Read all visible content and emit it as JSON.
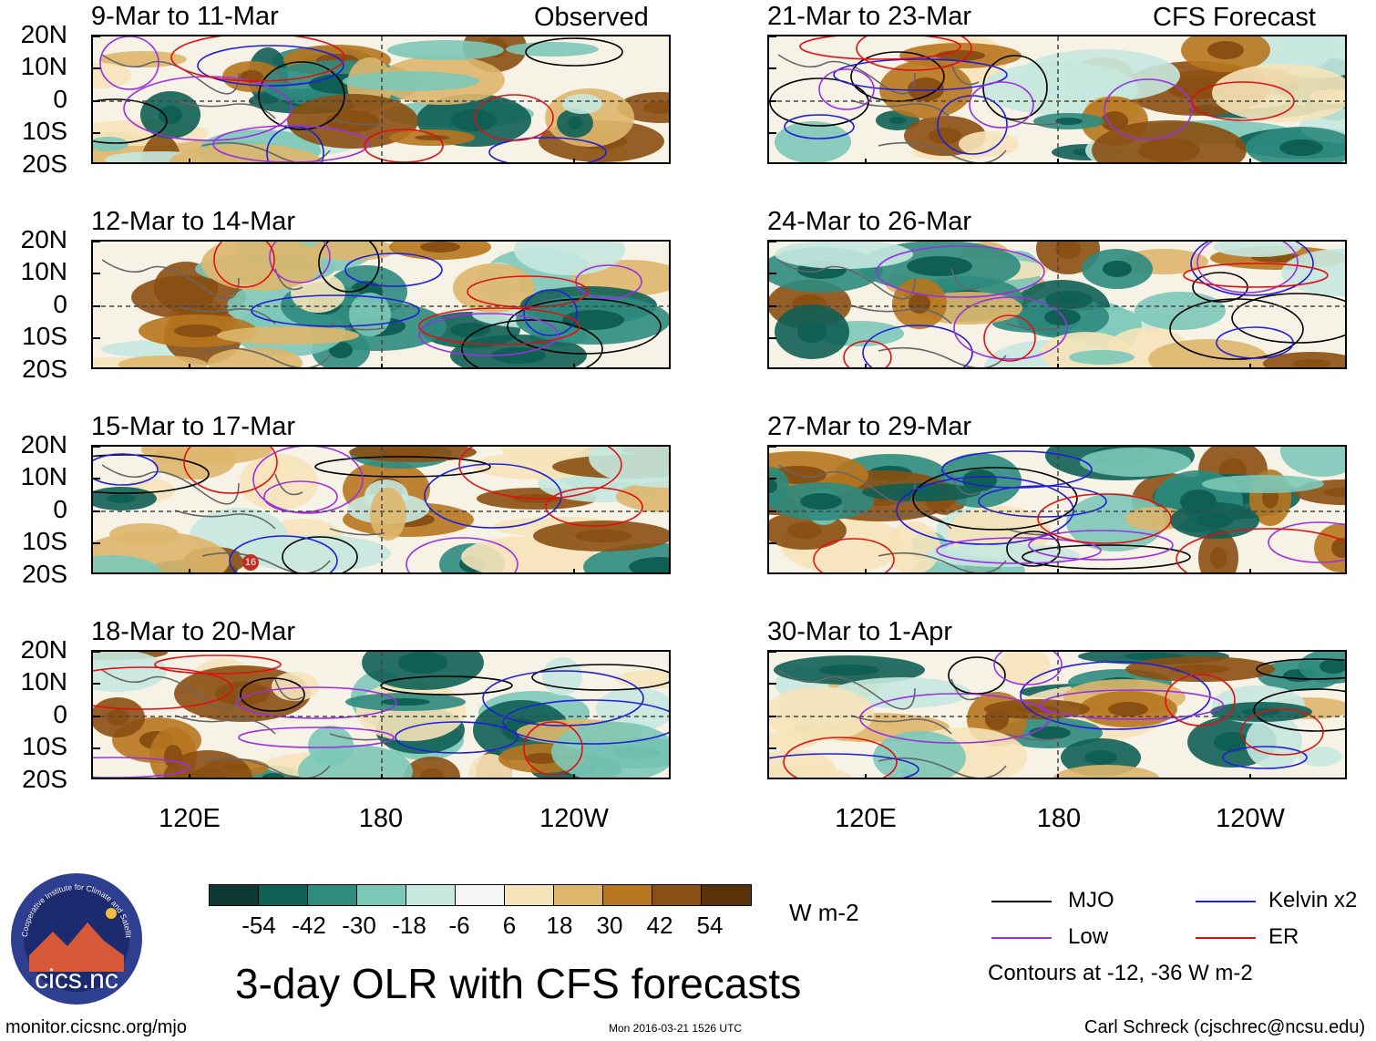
{
  "title": "3-day OLR with CFS forecasts",
  "units": "W m-2",
  "observed_label": "Observed",
  "forecast_label": "CFS Forecast",
  "lat_labels": [
    "20N",
    "10N",
    "0",
    "10S",
    "20S"
  ],
  "lon_labels": [
    "120E",
    "180",
    "120W"
  ],
  "panels": [
    {
      "title": "9-Mar to 11-Mar"
    },
    {
      "title": "12-Mar to 14-Mar"
    },
    {
      "title": "15-Mar to 17-Mar",
      "storm_marker": "16"
    },
    {
      "title": "18-Mar to 20-Mar"
    },
    {
      "title": "21-Mar to 23-Mar"
    },
    {
      "title": "24-Mar to 26-Mar"
    },
    {
      "title": "27-Mar to 29-Mar"
    },
    {
      "title": "30-Mar to 1-Apr"
    }
  ],
  "colorbar": {
    "colors": [
      "#0d3b33",
      "#0f5f55",
      "#2e8b7e",
      "#7cc8b8",
      "#c5e8df",
      "#f5f5f5",
      "#f5e3b9",
      "#ddb66b",
      "#b7761f",
      "#8a4f12",
      "#5a3208"
    ],
    "ticks": [
      "-54",
      "-42",
      "-30",
      "-18",
      "-6",
      "6",
      "18",
      "30",
      "42",
      "54"
    ]
  },
  "legend": {
    "items": [
      {
        "label": "MJO",
        "color": "#000000"
      },
      {
        "label": "Kelvin x2",
        "color": "#1f1fd6"
      },
      {
        "label": "Low",
        "color": "#9b30e0"
      },
      {
        "label": "ER",
        "color": "#e01010"
      }
    ],
    "note": "Contours at -12, -36 W m-2"
  },
  "logo_text": "cics.nc",
  "logo_ring_text": "Cooperative Institute for Climate and Satellites",
  "footer": {
    "left": "monitor.cicsnc.org/mjo",
    "center": "Mon 2016-03-21 1526 UTC",
    "right": "Carl Schreck (cjschrec@ncsu.edu)"
  }
}
